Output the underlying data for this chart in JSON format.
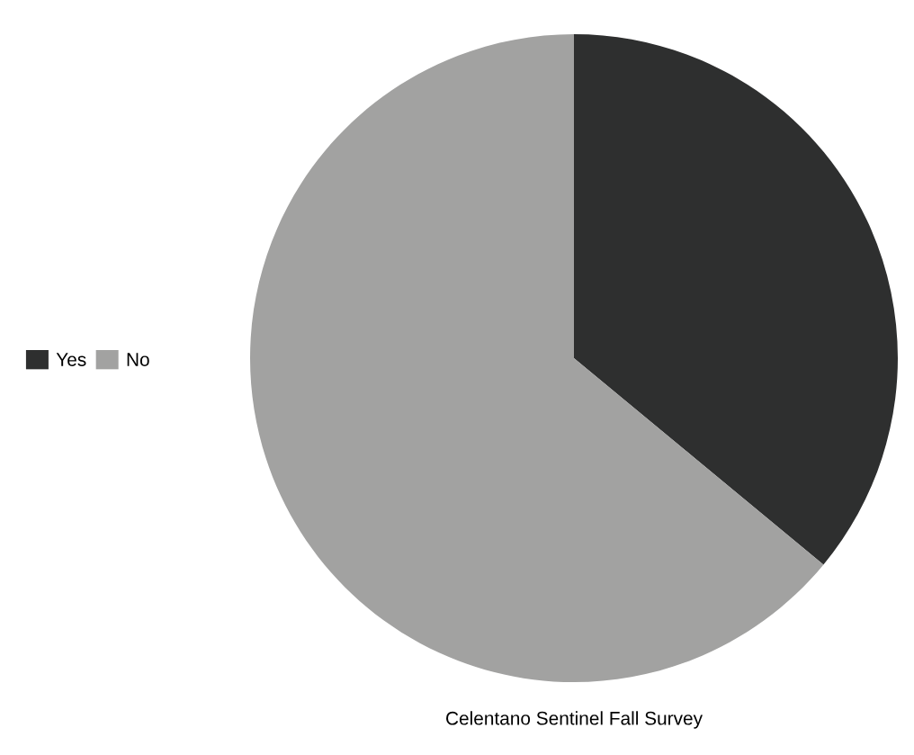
{
  "chart_data": {
    "type": "pie",
    "title": "Celentano Sentinel Fall Survey",
    "categories": [
      "Yes",
      "No"
    ],
    "values": [
      36,
      64
    ],
    "colors": [
      "#2e2f2f",
      "#a2a2a1"
    ],
    "legend": "left"
  }
}
